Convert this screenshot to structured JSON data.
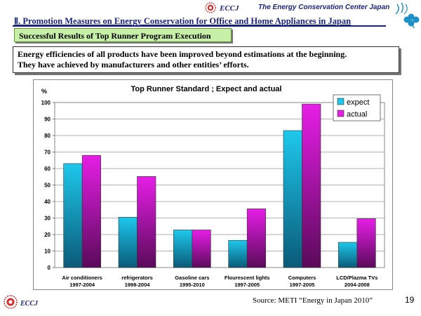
{
  "header": {
    "logo_text": "ECCJ",
    "org_name": "The Energy Conservation Center Japan"
  },
  "section_title": "Ⅱ. Promotion Measures on Energy Conservation for Office and Home Appliances in Japan",
  "banner": "Successful Results of Top Runner Program Execution",
  "description": {
    "line1": "Energy efficiencies of all products have been improved beyond estimations at the beginning.",
    "line2": "They have achieved by manufacturers and other entities’ efforts."
  },
  "colors": {
    "expect": "#1ec8ec",
    "actual": "#e61ee6",
    "brand_blue": "#1a237e",
    "brand_red": "#d62828",
    "banner_green": "#c6efa7"
  },
  "chart_data": {
    "type": "bar",
    "title": "Top Runner Standard ; Expect and actual",
    "ylabel": "%",
    "ylim": [
      0,
      100
    ],
    "yticks": [
      0,
      10,
      20,
      30,
      40,
      50,
      60,
      70,
      80,
      90,
      100
    ],
    "grid": true,
    "legend_position": "top-right",
    "categories": [
      {
        "name": "Air conditioners",
        "period": "1997-2004"
      },
      {
        "name": "refrigerators",
        "period": "1998-2004"
      },
      {
        "name": "Gasoline cars",
        "period": "1995-2010"
      },
      {
        "name": "Flourescent lights",
        "period": "1997-2005"
      },
      {
        "name": "Computers",
        "period": "1997-2005"
      },
      {
        "name": "LCD/Plazma TVs",
        "period": "2004-2008"
      }
    ],
    "series": [
      {
        "name": "expect",
        "values": [
          63,
          30.5,
          22.8,
          16.5,
          83,
          15.3
        ]
      },
      {
        "name": "actual",
        "values": [
          68,
          55.2,
          22.8,
          35.6,
          99.1,
          29.6
        ]
      }
    ]
  },
  "footer": {
    "logo_text": "ECCJ",
    "source": "Source:   METI “Energy in Japan 2010”",
    "page_number": "19"
  }
}
